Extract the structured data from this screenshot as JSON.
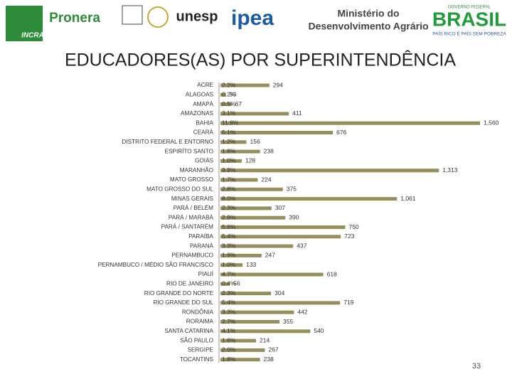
{
  "header": {
    "logos": [
      "INCRA",
      "Pronera",
      "unesp",
      "ipea",
      "Ministério do",
      "Desenvolvimento Agrário",
      "GOVERNO FEDERAL",
      "BRASIL",
      "PAÍS RICO É PAÍS SEM POBREZA"
    ]
  },
  "chart_data": {
    "type": "bar",
    "orientation": "horizontal",
    "title": "EDUCADORES(AS) POR SUPERINTENDÊNCIA",
    "color": "#968f5c",
    "xlim": [
      0,
      1560
    ],
    "categories": [
      "ACRE",
      "ALAGOAS",
      "AMAPÁ",
      "AMAZONAS",
      "BAHIA",
      "CEARÁ",
      "DISTRITO FEDERAL E ENTORNO",
      "ESPIRÍTO SANTO",
      "GOIÁS",
      "MARANHÃO",
      "MATO GROSSO",
      "MATO GROSSO DO SUL",
      "MINAS GERAIS",
      "PARÁ / BELÉM",
      "PARÁ / MARABÁ",
      "PARÁ / SANTARÉM",
      "PARAÍBA",
      "PARANÁ",
      "PERNAMBUCO",
      "PERNAMBUCO / MÉDIO SÃO FRANCISCO",
      "PIAUÍ",
      "RIO DE JANEIRO",
      "RIO GRANDE DO NORTE",
      "RIO GRANDE DO SUL",
      "RONDÔNIA",
      "RORAIMA",
      "SANTA CATARINA",
      "SÃO PAULO",
      "SERGIPE",
      "TOCANTINS"
    ],
    "values": [
      294,
      33,
      67,
      411,
      1560,
      676,
      156,
      238,
      128,
      1313,
      224,
      375,
      1061,
      307,
      390,
      750,
      723,
      437,
      247,
      133,
      618,
      56,
      304,
      719,
      442,
      355,
      540,
      214,
      267,
      238
    ],
    "value_labels": [
      "294",
      "33",
      "67",
      "411",
      "1,560",
      "676",
      "156",
      "238",
      "128",
      "1,313",
      "224",
      "375",
      "1,061",
      "307",
      "390",
      "750",
      "723",
      "437",
      "247",
      "133",
      "618",
      "56",
      "304",
      "719",
      "442",
      "355",
      "540",
      "214",
      "267",
      "238"
    ],
    "percentages": [
      2.2,
      0.2,
      0.5,
      3.1,
      11.8,
      5.1,
      1.2,
      1.8,
      1.0,
      9.9,
      1.7,
      2.8,
      8.0,
      2.3,
      2.9,
      5.6,
      5.4,
      3.3,
      1.9,
      1.0,
      4.7,
      0.4,
      2.3,
      5.4,
      3.3,
      2.7,
      4.1,
      1.6,
      2.0,
      1.8
    ],
    "percentage_labels": [
      "2.2%",
      "0.2%",
      "0.5%",
      "3.1%",
      "11.8%",
      "5.1%",
      "1.2%",
      "1.8%",
      "1.0%",
      "9.9%",
      "1.7%",
      "2.8%",
      "8.0%",
      "2.3%",
      "2.9%",
      "5.6%",
      "5.4%",
      "3.3%",
      "1.9%",
      "1.0%",
      "4.7%",
      "0.4%",
      "2.3%",
      "5.4%",
      "3.3%",
      "2.7%",
      "4.1%",
      "1.6%",
      "2.0%",
      "1.8%"
    ]
  },
  "page_number": "33"
}
